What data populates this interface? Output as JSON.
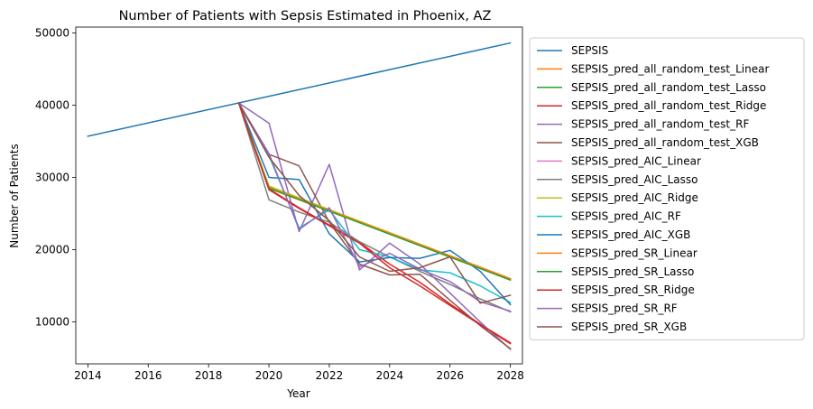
{
  "chart_data": {
    "type": "line",
    "title": "Number of Patients with Sepsis Estimated in Phoenix, AZ",
    "xlabel": "Year",
    "ylabel": "Number of Patients",
    "xlim": [
      2013.6,
      2028.4
    ],
    "ylim": [
      4200,
      50800
    ],
    "xticks": [
      2014,
      2016,
      2018,
      2020,
      2022,
      2024,
      2026,
      2028
    ],
    "yticks": [
      10000,
      20000,
      30000,
      40000,
      50000
    ],
    "grid": false,
    "legend_position": "outside-right",
    "series": [
      {
        "name": "SEPSIS",
        "color": "#1f77b4",
        "x": [
          2014,
          2019,
          2028
        ],
        "y": [
          35700,
          40300,
          48600
        ]
      },
      {
        "name": "SEPSIS_pred_all_random_test_Linear",
        "color": "#ff7f0e",
        "x": [
          2019,
          2020,
          2028
        ],
        "y": [
          40300,
          28700,
          16000
        ]
      },
      {
        "name": "SEPSIS_pred_all_random_test_Lasso",
        "color": "#2ca02c",
        "x": [
          2019,
          2020,
          2028
        ],
        "y": [
          40300,
          28600,
          15900
        ]
      },
      {
        "name": "SEPSIS_pred_all_random_test_Ridge",
        "color": "#d62728",
        "x": [
          2019,
          2020,
          2021,
          2022,
          2023,
          2024,
          2025,
          2026,
          2027,
          2028
        ],
        "y": [
          40300,
          28400,
          25800,
          23400,
          21000,
          18000,
          15500,
          12500,
          9700,
          7100
        ]
      },
      {
        "name": "SEPSIS_pred_all_random_test_RF",
        "color": "#9467bd",
        "x": [
          2019,
          2020,
          2021,
          2022,
          2023,
          2024,
          2025,
          2026,
          2027,
          2028
        ],
        "y": [
          40300,
          37500,
          22500,
          31800,
          17200,
          20900,
          18000,
          14000,
          10000,
          6200
        ]
      },
      {
        "name": "SEPSIS_pred_all_random_test_XGB",
        "color": "#8c564b",
        "x": [
          2019,
          2020,
          2021,
          2022,
          2023,
          2024,
          2025,
          2026,
          2027,
          2028
        ],
        "y": [
          40300,
          33200,
          31600,
          23800,
          18000,
          16500,
          16600,
          13000,
          9500,
          6300
        ]
      },
      {
        "name": "SEPSIS_pred_AIC_Linear",
        "color": "#e377c2",
        "x": [
          2019,
          2020,
          2028
        ],
        "y": [
          40300,
          28500,
          15900
        ]
      },
      {
        "name": "SEPSIS_pred_AIC_Lasso",
        "color": "#7f7f7f",
        "x": [
          2019,
          2020,
          2021,
          2022,
          2023,
          2024,
          2025,
          2026,
          2027,
          2028
        ],
        "y": [
          40300,
          26900,
          25200,
          23800,
          21100,
          19000,
          17000,
          15200,
          13200,
          11400
        ]
      },
      {
        "name": "SEPSIS_pred_AIC_Ridge",
        "color": "#bcbd22",
        "x": [
          2019,
          2020,
          2028
        ],
        "y": [
          40300,
          28800,
          15800
        ]
      },
      {
        "name": "SEPSIS_pred_AIC_RF",
        "color": "#17becf",
        "x": [
          2019,
          2020,
          2021,
          2022,
          2023,
          2024,
          2025,
          2026,
          2027,
          2028
        ],
        "y": [
          40300,
          33000,
          23000,
          25500,
          20000,
          19000,
          17200,
          16800,
          15000,
          12700
        ]
      },
      {
        "name": "SEPSIS_pred_AIC_XGB",
        "color": "#1f77b4",
        "x": [
          2019,
          2020,
          2021,
          2022,
          2023,
          2024,
          2025,
          2026,
          2027,
          2028
        ],
        "y": [
          40300,
          30000,
          29700,
          22200,
          18300,
          18900,
          18800,
          19900,
          17000,
          12400
        ]
      },
      {
        "name": "SEPSIS_pred_SR_Linear",
        "color": "#ff7f0e",
        "x": [
          2019,
          2020,
          2028
        ],
        "y": [
          40300,
          28600,
          15900
        ]
      },
      {
        "name": "SEPSIS_pred_SR_Lasso",
        "color": "#2ca02c",
        "x": [
          2019,
          2020,
          2028
        ],
        "y": [
          40300,
          28500,
          15800
        ]
      },
      {
        "name": "SEPSIS_pred_SR_Ridge",
        "color": "#d62728",
        "x": [
          2019,
          2020,
          2021,
          2022,
          2023,
          2024,
          2025,
          2026,
          2027,
          2028
        ],
        "y": [
          40300,
          28300,
          25700,
          23300,
          20900,
          17500,
          15000,
          12300,
          9600,
          7000
        ]
      },
      {
        "name": "SEPSIS_pred_SR_RF",
        "color": "#9467bd",
        "x": [
          2019,
          2020,
          2021,
          2022,
          2023,
          2024,
          2025,
          2026,
          2027,
          2028
        ],
        "y": [
          40300,
          33300,
          22800,
          25800,
          17600,
          19500,
          17300,
          15600,
          12800,
          11500
        ]
      },
      {
        "name": "SEPSIS_pred_SR_XGB",
        "color": "#8c564b",
        "x": [
          2019,
          2020,
          2021,
          2022,
          2023,
          2024,
          2025,
          2026,
          2027,
          2028
        ],
        "y": [
          40300,
          32800,
          27500,
          24000,
          19000,
          17000,
          17500,
          19000,
          12600,
          13700
        ]
      }
    ]
  }
}
